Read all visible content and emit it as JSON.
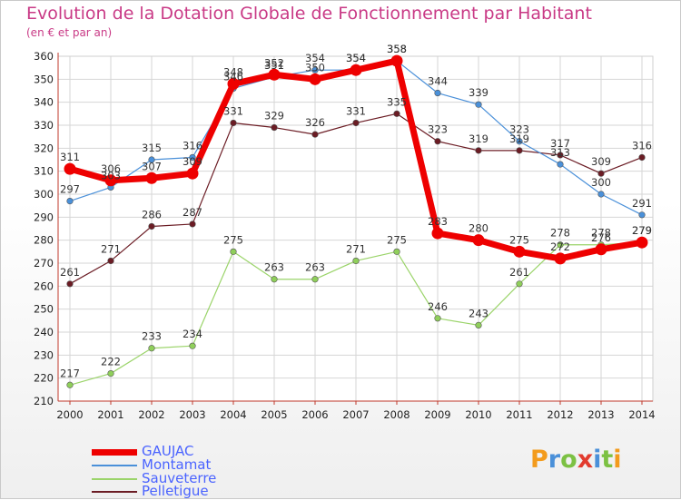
{
  "title": "Evolution de la Dotation Globale de Fonctionnement par Habitant",
  "subtitle": "(en € et par an)",
  "logo": {
    "letters": [
      "P",
      "r",
      "o",
      "x",
      "i",
      "t",
      "i"
    ],
    "colors": [
      "#f39b1c",
      "#4a90d9",
      "#7cc143",
      "#e23b2e",
      "#4a90d9",
      "#7cc143",
      "#f39b1c"
    ]
  },
  "chart_data": {
    "type": "line",
    "x": [
      "2000",
      "2001",
      "2002",
      "2003",
      "2004",
      "2005",
      "2006",
      "2007",
      "2008",
      "2009",
      "2010",
      "2011",
      "2012",
      "2013",
      "2014"
    ],
    "ylim": [
      210,
      360
    ],
    "yticks": [
      210,
      220,
      230,
      240,
      250,
      260,
      270,
      280,
      290,
      300,
      310,
      320,
      330,
      340,
      350,
      360
    ],
    "grid": true,
    "legend_position": "bottom-left",
    "series": [
      {
        "name": "Pelletigue",
        "color": "#6b1c24",
        "marker": "#6b1c24",
        "width": 1.2,
        "values": [
          261,
          271,
          286,
          287,
          331,
          329,
          326,
          331,
          335,
          323,
          319,
          319,
          317,
          309,
          316
        ]
      },
      {
        "name": "Sauveterre",
        "color": "#9bd46a",
        "marker": "#8fcf5a",
        "width": 1.2,
        "values": [
          217,
          222,
          233,
          234,
          275,
          263,
          263,
          271,
          275,
          246,
          243,
          261,
          278,
          278,
          279
        ]
      },
      {
        "name": "Montamat",
        "color": "#4a90d9",
        "marker": "#4a90d9",
        "width": 1.2,
        "values": [
          297,
          303,
          315,
          316,
          346,
          351,
          354,
          354,
          358,
          344,
          339,
          323,
          313,
          300,
          291
        ]
      },
      {
        "name": "GAUJAC",
        "color": "#ee0000",
        "marker": "#ee0000",
        "width": 7,
        "values": [
          311,
          306,
          307,
          309,
          348,
          352,
          350,
          354,
          358,
          283,
          280,
          275,
          272,
          276,
          279
        ]
      }
    ],
    "legend_order": [
      "GAUJAC",
      "Montamat",
      "Sauveterre",
      "Pelletigue"
    ]
  }
}
